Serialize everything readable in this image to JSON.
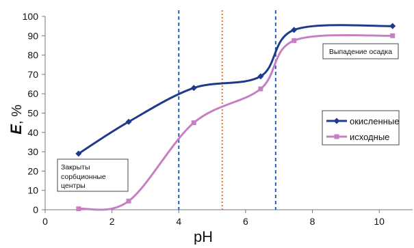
{
  "chart_data": {
    "type": "line",
    "xlabel": "pH",
    "ylabel_main": "E",
    "ylabel_unit": ", %",
    "xlim": [
      0,
      11
    ],
    "ylim": [
      0,
      100
    ],
    "x_ticks": [
      0,
      2,
      4,
      6,
      8,
      10
    ],
    "y_ticks": [
      0,
      10,
      20,
      30,
      40,
      50,
      60,
      70,
      80,
      90,
      100
    ],
    "grid": false,
    "legend_position": "right",
    "series": [
      {
        "name": "окисленные",
        "color": "#1f3a8a",
        "marker": "diamond",
        "x": [
          1.0,
          2.5,
          4.45,
          6.45,
          7.45,
          10.4
        ],
        "y": [
          29,
          45.5,
          63,
          69,
          93,
          95
        ]
      },
      {
        "name": "исходные",
        "color": "#c77fc3",
        "marker": "square",
        "x": [
          1.0,
          2.5,
          4.45,
          6.45,
          7.45,
          10.4
        ],
        "y": [
          0.5,
          4.5,
          45,
          62.5,
          87.5,
          90
        ]
      }
    ],
    "vertical_lines": [
      {
        "x": 4.0,
        "color": "#1f5fbf",
        "style": "dashed"
      },
      {
        "x": 5.3,
        "color": "#e8702a",
        "style": "dotted"
      },
      {
        "x": 6.9,
        "color": "#1f5fbf",
        "style": "dashed"
      }
    ],
    "annotations": [
      "Закрыты сорбционные центры",
      "Выпадение осадка"
    ]
  }
}
